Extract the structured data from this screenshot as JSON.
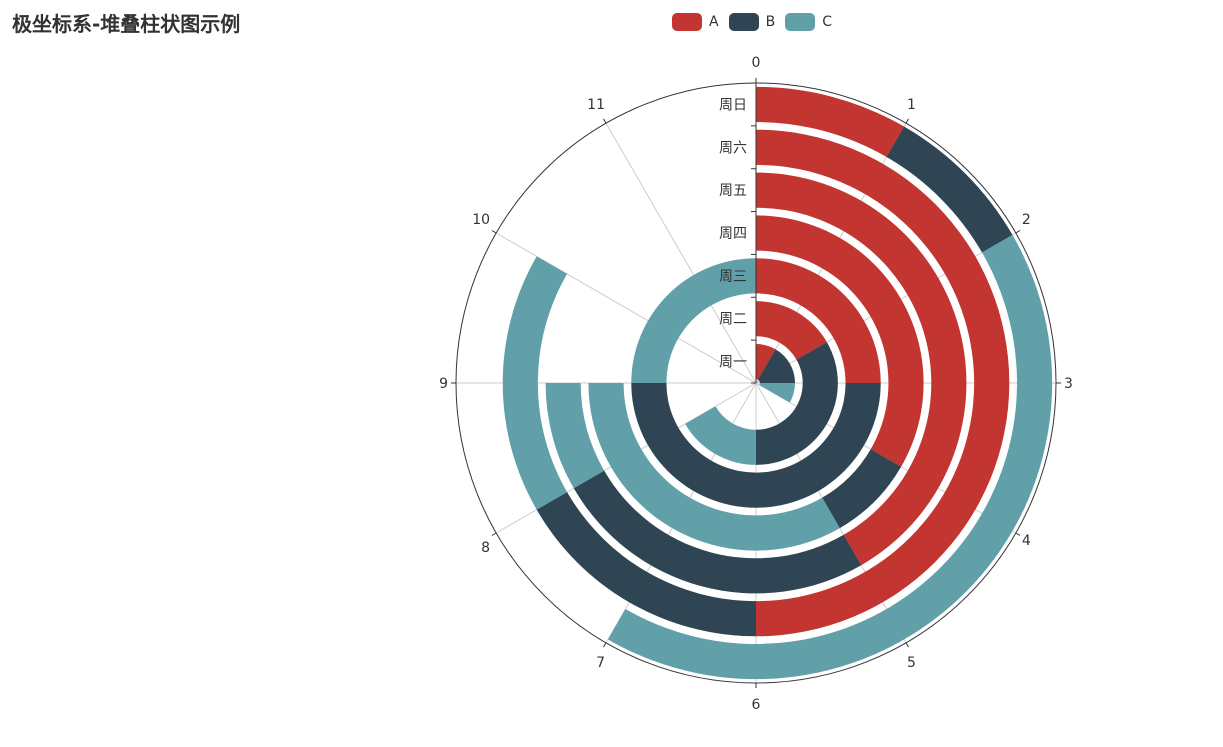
{
  "chart_data": {
    "type": "bar",
    "title": "极坐标系-堆叠柱状图示例",
    "coordinate_system": "polar",
    "stacked": true,
    "angle_axis": {
      "type": "value",
      "min": 0,
      "max": 12,
      "ticks": [
        "0",
        "1",
        "2",
        "3",
        "4",
        "5",
        "6",
        "7",
        "8",
        "9",
        "10",
        "11"
      ]
    },
    "categories": [
      "周一",
      "周二",
      "周三",
      "周四",
      "周五",
      "周六",
      "周日"
    ],
    "series": [
      {
        "name": "A",
        "color": "#c23531",
        "values": [
          1,
          2,
          3,
          4,
          5,
          6,
          1
        ]
      },
      {
        "name": "B",
        "color": "#2f4554",
        "values": [
          2,
          4,
          6,
          1,
          3,
          2,
          1
        ]
      },
      {
        "name": "C",
        "color": "#61a0a8",
        "values": [
          1,
          2,
          3,
          4,
          1,
          2,
          5
        ]
      }
    ],
    "legend_position": "top-center",
    "grid": true
  }
}
